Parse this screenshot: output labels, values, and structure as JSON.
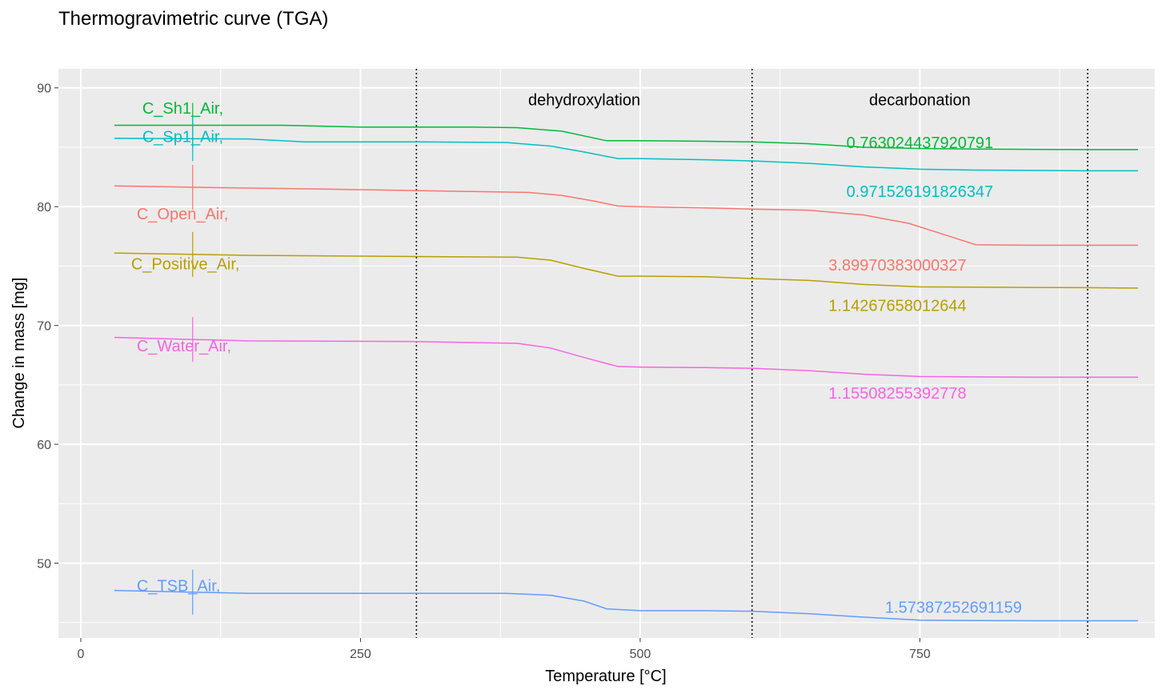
{
  "chart_data": {
    "type": "line",
    "title": "Thermogravimetric curve (TGA)",
    "xlabel": "Temperature [°C]",
    "ylabel": "Change in mass [mg]",
    "xlim": [
      -20,
      960
    ],
    "ylim": [
      43.7,
      91.6
    ],
    "x_ticks": [
      0,
      250,
      500,
      750
    ],
    "y_ticks": [
      50,
      60,
      70,
      80,
      90
    ],
    "grid": true,
    "legend": "none",
    "vlines": [
      300,
      600,
      900
    ],
    "regions": [
      {
        "label": "dehydroxylation",
        "x": 450,
        "y": 89
      },
      {
        "label": "decarbonation",
        "x": 750,
        "y": 89
      }
    ],
    "series": [
      {
        "name": "C_Sh1_Air,",
        "color": "#00BA38",
        "x": [
          30,
          180,
          250,
          300,
          350,
          390,
          430,
          470,
          500,
          560,
          600,
          650,
          700,
          750,
          800,
          850,
          900,
          945
        ],
        "y": [
          86.85,
          86.85,
          86.7,
          86.7,
          86.7,
          86.65,
          86.35,
          85.55,
          85.55,
          85.5,
          85.45,
          85.3,
          85.0,
          84.9,
          84.85,
          84.82,
          84.8,
          84.8
        ],
        "label_x": 55,
        "label_y": 88.3,
        "value": "0.763024437920791",
        "value_x": 750,
        "value_y": 85.4
      },
      {
        "name": "C_Sp1_Air,",
        "color": "#00BFC4",
        "x": [
          30,
          150,
          200,
          300,
          380,
          420,
          450,
          480,
          500,
          560,
          600,
          650,
          700,
          750,
          800,
          850,
          900,
          945
        ],
        "y": [
          85.75,
          85.7,
          85.45,
          85.45,
          85.4,
          85.1,
          84.6,
          84.05,
          84.05,
          83.95,
          83.85,
          83.65,
          83.35,
          83.15,
          83.08,
          83.05,
          83.02,
          83.02
        ],
        "label_x": 55,
        "label_y": 85.9,
        "value": "0.971526191826347",
        "value_x": 750,
        "value_y": 81.3
      },
      {
        "name": "C_Open_Air,",
        "color": "#F8766D",
        "x": [
          30,
          120,
          200,
          300,
          400,
          430,
          460,
          480,
          500,
          560,
          600,
          650,
          700,
          740,
          770,
          800,
          850,
          900,
          945
        ],
        "y": [
          81.75,
          81.6,
          81.5,
          81.35,
          81.2,
          80.95,
          80.45,
          80.05,
          80.0,
          79.9,
          79.8,
          79.7,
          79.3,
          78.6,
          77.7,
          76.8,
          76.75,
          76.75,
          76.75
        ],
        "label_x": 50,
        "label_y": 79.4,
        "value": "3.89970383000327",
        "value_x": 730,
        "value_y": 75.1
      },
      {
        "name": "C_Positive_Air,",
        "color": "#B79F00",
        "x": [
          30,
          150,
          300,
          390,
          420,
          450,
          480,
          500,
          560,
          600,
          650,
          700,
          750,
          800,
          850,
          900,
          945
        ],
        "y": [
          76.1,
          75.9,
          75.8,
          75.75,
          75.5,
          74.8,
          74.15,
          74.15,
          74.1,
          73.95,
          73.8,
          73.45,
          73.25,
          73.22,
          73.2,
          73.18,
          73.15
        ],
        "label_x": 45,
        "label_y": 75.2,
        "value": "1.14267658012644",
        "value_x": 730,
        "value_y": 71.7
      },
      {
        "name": "C_Water_Air,",
        "color": "#F564E3",
        "x": [
          30,
          150,
          300,
          390,
          420,
          450,
          480,
          500,
          560,
          600,
          650,
          700,
          750,
          800,
          850,
          900,
          945
        ],
        "y": [
          69.0,
          68.7,
          68.65,
          68.5,
          68.1,
          67.3,
          66.55,
          66.5,
          66.45,
          66.4,
          66.2,
          65.9,
          65.7,
          65.67,
          65.65,
          65.65,
          65.65
        ],
        "label_x": 50,
        "label_y": 68.3,
        "value": "1.15508255392778",
        "value_x": 730,
        "value_y": 64.3
      },
      {
        "name": "C_TSB_Air,",
        "color": "#619CFF",
        "x": [
          30,
          150,
          300,
          380,
          420,
          450,
          470,
          500,
          560,
          600,
          650,
          700,
          750,
          800,
          850,
          900,
          945
        ],
        "y": [
          47.7,
          47.45,
          47.45,
          47.45,
          47.3,
          46.8,
          46.15,
          46.0,
          46.0,
          45.95,
          45.75,
          45.45,
          45.2,
          45.17,
          45.15,
          45.15,
          45.15
        ],
        "label_x": 50,
        "label_y": 48.1,
        "value": "1.57387252691159",
        "value_x": 780,
        "value_y": 46.3
      }
    ]
  }
}
